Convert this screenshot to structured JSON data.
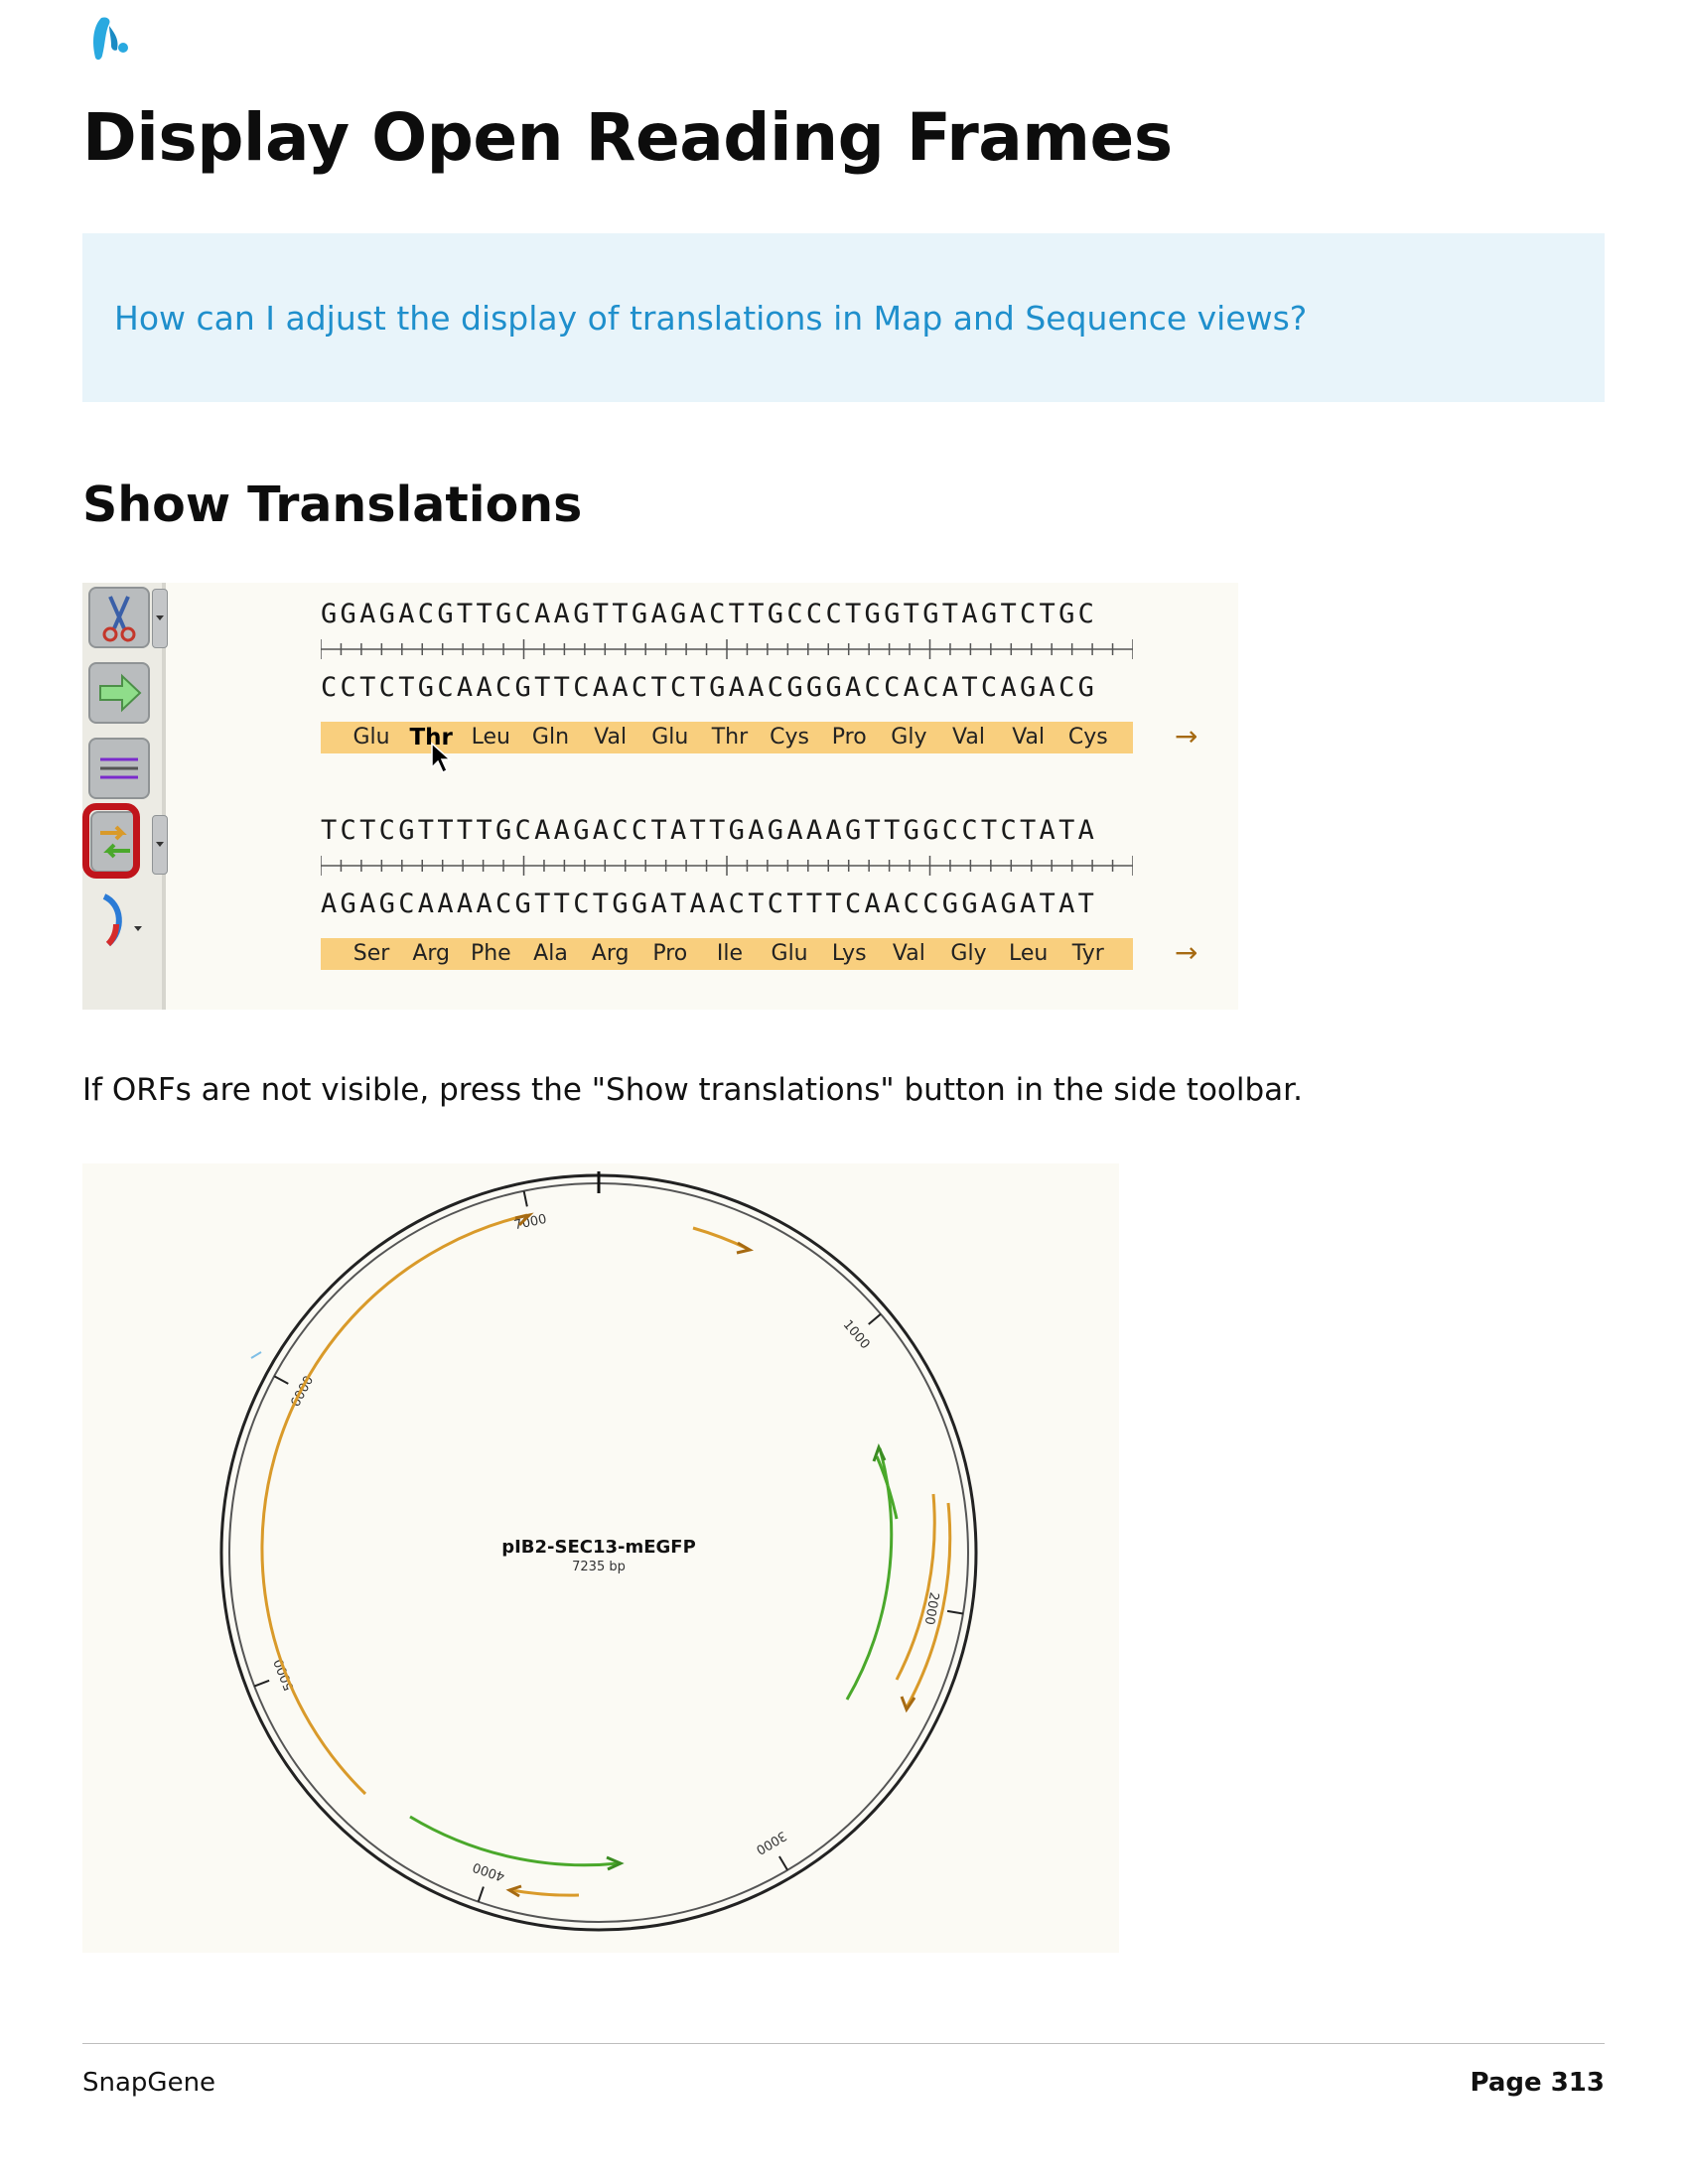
{
  "document": {
    "title": "Display Open Reading Frames",
    "callout": "How can I adjust the display of translations in Map and Sequence views?",
    "section_heading": "Show Translations",
    "body_text": "If ORFs are not visible, press the \"Show translations\" button in the side toolbar."
  },
  "sequence_view": {
    "block1": {
      "top_strand": "GGAGACGTTGCAAGTTGAGACTTGCCCTGGTGTAGTCTGC",
      "bottom_strand": "CCTCTGCAACGTTCAACTCTGAACGGGACCACATCAGACG",
      "amino_acids": [
        "Glu",
        "Thr",
        "Leu",
        "Gln",
        "Val",
        "Glu",
        "Thr",
        "Cys",
        "Pro",
        "Gly",
        "Val",
        "Val",
        "Cys"
      ],
      "arrow": "→"
    },
    "block2": {
      "top_strand": "TCTCGTTTTGCAAGACCTATTGAGAAAGTTGGCCTCTATA",
      "bottom_strand": "AGAGCAAAACGTTCTGGATAACTCTTTCAACCGGAGATAT",
      "amino_acids": [
        "Ser",
        "Arg",
        "Phe",
        "Ala",
        "Arg",
        "Pro",
        "Ile",
        "Glu",
        "Lys",
        "Val",
        "Gly",
        "Leu",
        "Tyr"
      ],
      "arrow": "→"
    },
    "toolbar_icons": [
      "scissors-icon",
      "forward-arrow-icon",
      "strands-icon",
      "show-translations-icon",
      "arc-icon"
    ]
  },
  "plasmid_map": {
    "name": "pIB2-SEC13-mEGFP",
    "length": "7235 bp",
    "ticks": [
      "1000",
      "2000",
      "3000",
      "4000",
      "5000",
      "6000",
      "7000"
    ],
    "colors": {
      "orf_orange": "#d99a2a",
      "orf_green": "#4aa82b"
    }
  },
  "footer": {
    "brand": "SnapGene",
    "page_label": "Page 313"
  },
  "colors": {
    "callout_bg": "#e8f4fa",
    "callout_text": "#1f8fcc",
    "translation_bar": "#f9cf7e",
    "highlight_red": "#c0141b"
  }
}
